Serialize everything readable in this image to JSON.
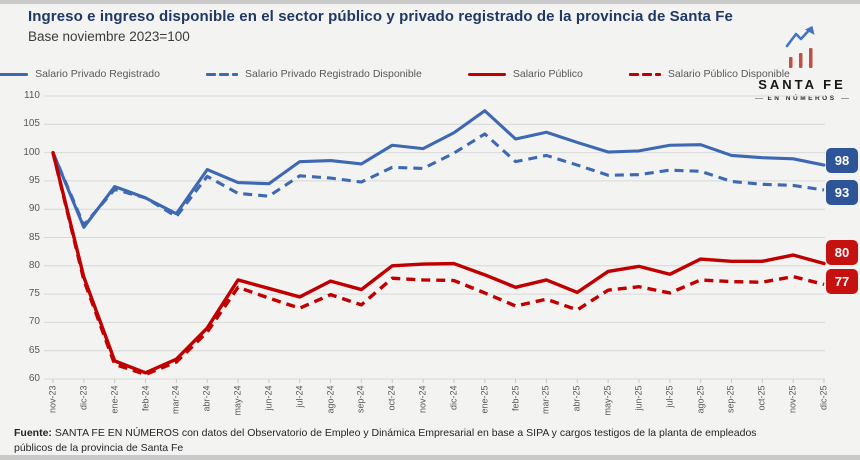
{
  "header": {
    "title": "Ingreso e ingreso disponible en el sector público y privado registrado de la provincia de Santa Fe",
    "subtitle": "Base noviembre 2023=100"
  },
  "logo": {
    "name": "SANTA FE",
    "tagline": "EN NÚMEROS",
    "bar_color": "#c05044",
    "arrow_color": "#4472c4"
  },
  "footer": {
    "source_label": "Fuente:",
    "source_text": " SANTA FE EN NÚMEROS con datos del Observatorio de Empleo y Dinámica Empresarial en base a SIPA y cargos testigos de la planta de empleados públicos de la provincia de Santa Fe"
  },
  "chart_data": {
    "type": "line",
    "title": "Ingreso e ingreso disponible en el sector público y privado registrado de la provincia de Santa Fe",
    "subtitle": "Base noviembre 2023=100",
    "grid": "horizontal",
    "legend_position": "top",
    "ylim": [
      60,
      110
    ],
    "y_ticks": [
      60,
      65,
      70,
      75,
      80,
      85,
      90,
      95,
      100,
      105,
      110
    ],
    "categories": [
      "nov-23",
      "dic-23",
      "ene-24",
      "feb-24",
      "mar-24",
      "abr-24",
      "may-24",
      "jun-24",
      "jul-24",
      "ago-24",
      "sep-24",
      "oct-24",
      "nov-24",
      "dic-24",
      "ene-25",
      "feb-25",
      "mar-25",
      "abr-25",
      "may-25",
      "jun-25",
      "jul-25",
      "ago-25",
      "sep-25",
      "oct-25",
      "nov-25",
      "dic-25"
    ],
    "series": [
      {
        "name": "Salario Privado Registrado",
        "color": "#3e68b2",
        "dash": "solid",
        "end_label": "98",
        "end_label_color": "#2e5597",
        "values": [
          100,
          86.8,
          94.0,
          92.0,
          89.2,
          97.0,
          94.7,
          94.5,
          98.4,
          98.6,
          98.0,
          101.3,
          100.7,
          103.5,
          107.4,
          102.4,
          103.6,
          101.8,
          100.1,
          100.3,
          101.3,
          101.4,
          99.5,
          99.1,
          98.9,
          97.8
        ]
      },
      {
        "name": "Salario Privado Registrado Disponible",
        "color": "#3e68b2",
        "dash": "dashed",
        "end_label": "93",
        "end_label_color": "#2e5597",
        "values": [
          100,
          87.2,
          93.5,
          92.0,
          88.7,
          95.8,
          92.8,
          92.3,
          95.9,
          95.5,
          94.8,
          97.4,
          97.2,
          99.9,
          103.3,
          98.4,
          99.5,
          97.8,
          96.0,
          96.1,
          96.9,
          96.7,
          94.9,
          94.4,
          94.2,
          93.4
        ]
      },
      {
        "name": "Salario Público",
        "color": "#c00000",
        "dash": "solid",
        "end_label": "80",
        "end_label_color": "#c61111",
        "values": [
          100,
          78.0,
          63.2,
          61.1,
          63.5,
          69.0,
          77.5,
          76.0,
          74.5,
          77.3,
          75.8,
          80.0,
          80.3,
          80.4,
          78.4,
          76.2,
          77.5,
          75.3,
          79.0,
          79.9,
          78.5,
          81.2,
          80.8,
          80.8,
          81.9,
          80.4
        ]
      },
      {
        "name": "Salario Público Disponible",
        "color": "#c00000",
        "dash": "dashed",
        "end_label": "77",
        "end_label_color": "#c61111",
        "values": [
          100,
          77.5,
          62.6,
          60.8,
          63.0,
          68.3,
          76.2,
          74.3,
          72.5,
          74.9,
          73.1,
          77.8,
          77.5,
          77.4,
          75.2,
          72.9,
          74.1,
          72.2,
          75.7,
          76.3,
          75.2,
          77.5,
          77.2,
          77.1,
          78.1,
          76.7
        ]
      }
    ]
  }
}
